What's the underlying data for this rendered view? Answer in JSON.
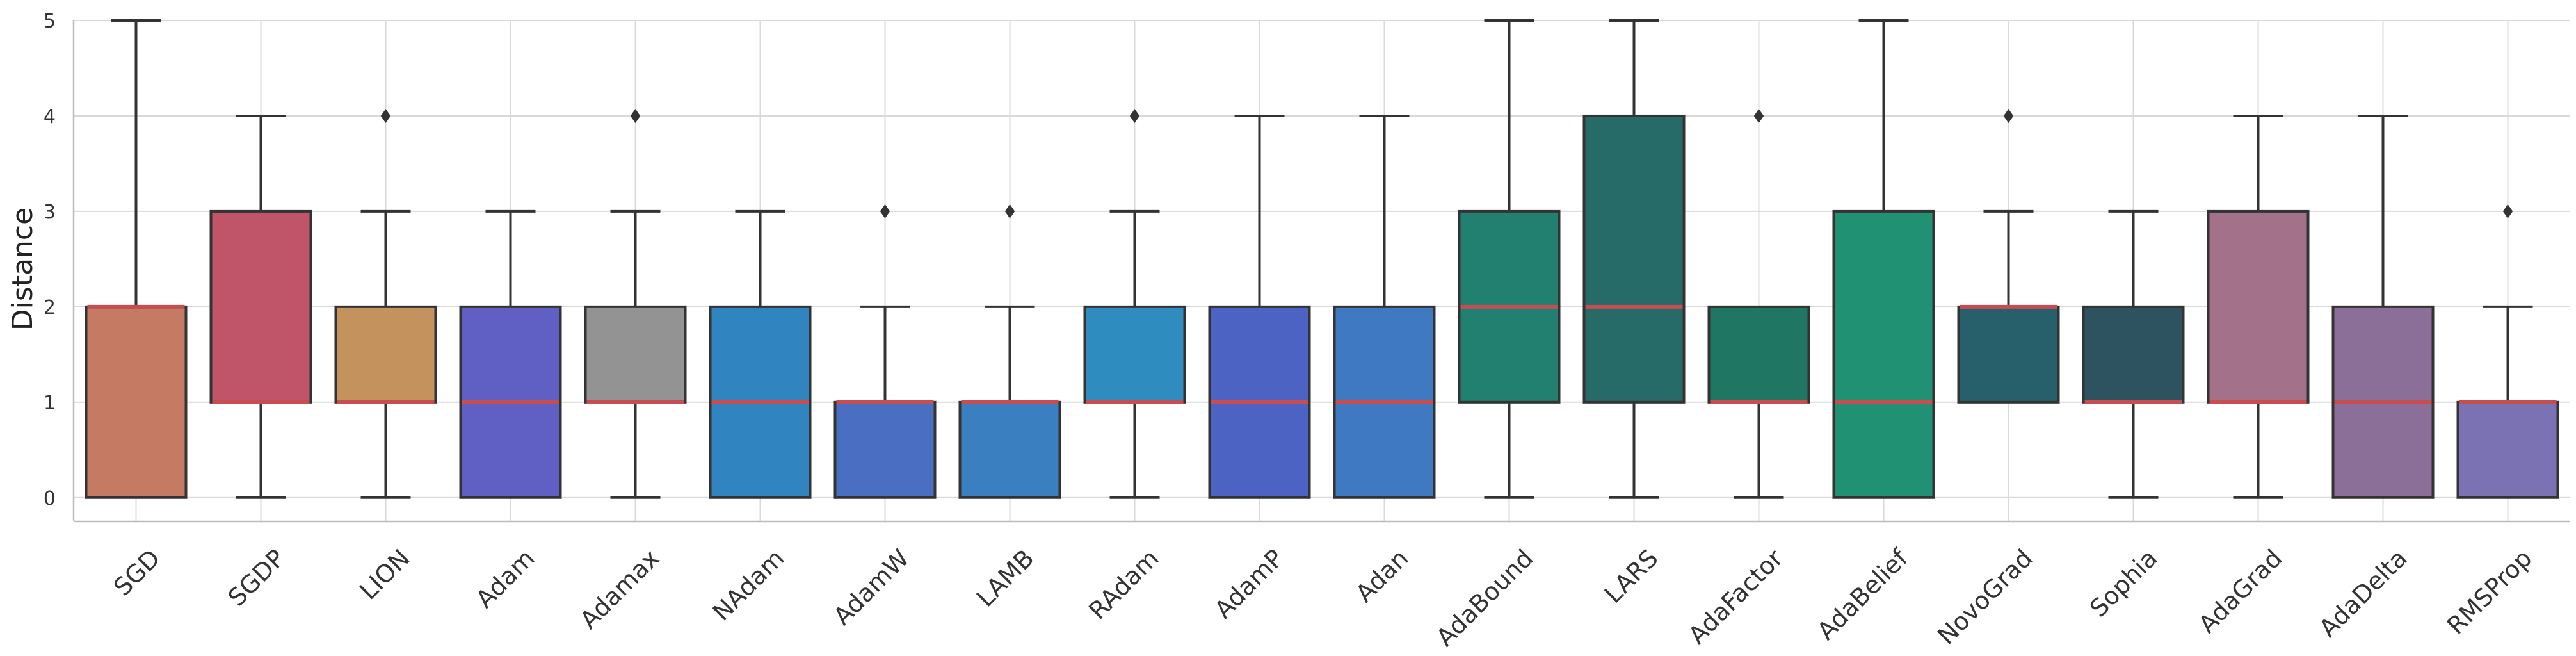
{
  "chart_data": {
    "type": "box",
    "title": "",
    "xlabel": "",
    "ylabel": "Distance",
    "ylim": [
      -0.25,
      5
    ],
    "yticks": [
      0,
      1,
      2,
      3,
      4,
      5
    ],
    "grid": true,
    "legend": "none",
    "median_color": "#c44e52",
    "categories": [
      "SGD",
      "SGDP",
      "LION",
      "Adam",
      "Adamax",
      "NAdam",
      "AdamW",
      "LAMB",
      "RAdam",
      "AdamP",
      "Adan",
      "AdaBound",
      "LARS",
      "AdaFactor",
      "AdaBelief",
      "NovoGrad",
      "Sophia",
      "AdaGrad",
      "AdaDelta",
      "RMSProp"
    ],
    "boxes": [
      {
        "name": "SGD",
        "whislo": 0,
        "q1": 0,
        "med": 2,
        "q3": 2,
        "whishi": 5,
        "fliers": [],
        "color": "#c47a63"
      },
      {
        "name": "SGDP",
        "whislo": 0,
        "q1": 1,
        "med": 1,
        "q3": 3,
        "whishi": 4,
        "fliers": [],
        "color": "#c05468"
      },
      {
        "name": "LION",
        "whislo": 0,
        "q1": 1,
        "med": 1,
        "q3": 2,
        "whishi": 3,
        "fliers": [
          4
        ],
        "color": "#c4925c"
      },
      {
        "name": "Adam",
        "whislo": 0,
        "q1": 0,
        "med": 1,
        "q3": 2,
        "whishi": 3,
        "fliers": [],
        "color": "#5f5fc4"
      },
      {
        "name": "Adamax",
        "whislo": 0,
        "q1": 1,
        "med": 1,
        "q3": 2,
        "whishi": 3,
        "fliers": [
          4
        ],
        "color": "#939393"
      },
      {
        "name": "NAdam",
        "whislo": 0,
        "q1": 0,
        "med": 1,
        "q3": 2,
        "whishi": 3,
        "fliers": [],
        "color": "#3085c0"
      },
      {
        "name": "AdamW",
        "whislo": 0,
        "q1": 0,
        "med": 1,
        "q3": 1,
        "whishi": 2,
        "fliers": [
          3
        ],
        "color": "#4a6fc2"
      },
      {
        "name": "LAMB",
        "whislo": 0,
        "q1": 0,
        "med": 1,
        "q3": 1,
        "whishi": 2,
        "fliers": [
          3
        ],
        "color": "#3a7fc0"
      },
      {
        "name": "RAdam",
        "whislo": 0,
        "q1": 1,
        "med": 1,
        "q3": 2,
        "whishi": 3,
        "fliers": [
          4
        ],
        "color": "#2f8cbf"
      },
      {
        "name": "AdamP",
        "whislo": 0,
        "q1": 0,
        "med": 1,
        "q3": 2,
        "whishi": 4,
        "fliers": [],
        "color": "#4c63c4"
      },
      {
        "name": "Adan",
        "whislo": 0,
        "q1": 0,
        "med": 1,
        "q3": 2,
        "whishi": 4,
        "fliers": [],
        "color": "#3f79c2"
      },
      {
        "name": "AdaBound",
        "whislo": 0,
        "q1": 1,
        "med": 2,
        "q3": 3,
        "whishi": 5,
        "fliers": [],
        "color": "#21806f"
      },
      {
        "name": "LARS",
        "whislo": 0,
        "q1": 1,
        "med": 2,
        "q3": 4,
        "whishi": 5,
        "fliers": [],
        "color": "#276b68"
      },
      {
        "name": "AdaFactor",
        "whislo": 0,
        "q1": 1,
        "med": 1,
        "q3": 2,
        "whishi": 2,
        "fliers": [
          4
        ],
        "color": "#1f7662"
      },
      {
        "name": "AdaBelief",
        "whislo": 0,
        "q1": 0,
        "med": 1,
        "q3": 3,
        "whishi": 5,
        "fliers": [],
        "color": "#219173"
      },
      {
        "name": "NovoGrad",
        "whislo": 1,
        "q1": 1,
        "med": 2,
        "q3": 2,
        "whishi": 3,
        "fliers": [
          4
        ],
        "color": "#275f6a"
      },
      {
        "name": "Sophia",
        "whislo": 0,
        "q1": 1,
        "med": 1,
        "q3": 2,
        "whishi": 3,
        "fliers": [],
        "color": "#2d5360"
      },
      {
        "name": "AdaGrad",
        "whislo": 0,
        "q1": 1,
        "med": 1,
        "q3": 3,
        "whishi": 4,
        "fliers": [],
        "color": "#a4718a"
      },
      {
        "name": "AdaDelta",
        "whislo": 0,
        "q1": 0,
        "med": 1,
        "q3": 2,
        "whishi": 4,
        "fliers": [],
        "color": "#8c6f99"
      },
      {
        "name": "RMSProp",
        "whislo": 0,
        "q1": 0,
        "med": 1,
        "q3": 1,
        "whishi": 2,
        "fliers": [
          3
        ],
        "color": "#7a72b3"
      }
    ]
  }
}
